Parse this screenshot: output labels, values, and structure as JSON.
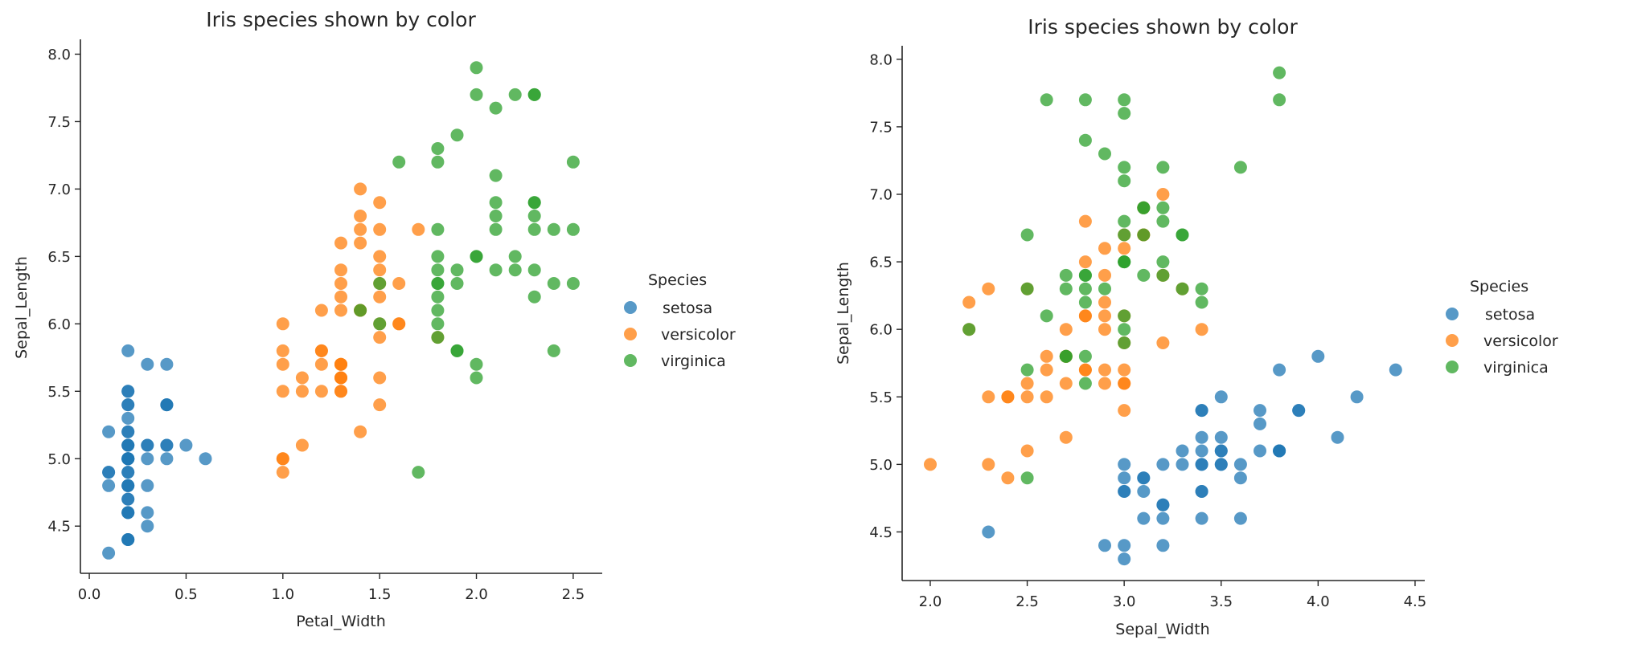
{
  "chart_data": [
    {
      "type": "scatter",
      "title": "Iris species shown by color",
      "xlabel": "Petal_Width",
      "ylabel": "Sepal_Length",
      "x_field": "petal_width",
      "y_field": "sepal_length",
      "xlim": [
        -0.046,
        2.65
      ],
      "ylim": [
        4.15,
        8.11
      ],
      "xticks": [
        0.0,
        0.5,
        1.0,
        1.5,
        2.0,
        2.5
      ],
      "xtick_labels": [
        "0.0",
        "0.5",
        "1.0",
        "1.5",
        "2.0",
        "2.5"
      ],
      "yticks": [
        4.5,
        5.0,
        5.5,
        6.0,
        6.5,
        7.0,
        7.5,
        8.0
      ],
      "ytick_labels": [
        "4.5",
        "5.0",
        "5.5",
        "6.0",
        "6.5",
        "7.0",
        "7.5",
        "8.0"
      ],
      "grid": false,
      "legend": {
        "title": "Species",
        "placement": "right",
        "entries": [
          "setosa",
          "versicolor",
          "virginica"
        ]
      }
    },
    {
      "type": "scatter",
      "title": "Iris species shown by color",
      "xlabel": "Sepal_Width",
      "ylabel": "Sepal_Length",
      "x_field": "sepal_width",
      "y_field": "sepal_length",
      "xlim": [
        1.855,
        4.55
      ],
      "ylim": [
        4.14,
        8.1
      ],
      "xticks": [
        2.0,
        2.5,
        3.0,
        3.5,
        4.0,
        4.5
      ],
      "xtick_labels": [
        "2.0",
        "2.5",
        "3.0",
        "3.5",
        "4.0",
        "4.5"
      ],
      "yticks": [
        4.5,
        5.0,
        5.5,
        6.0,
        6.5,
        7.0,
        7.5,
        8.0
      ],
      "ytick_labels": [
        "4.5",
        "5.0",
        "5.5",
        "6.0",
        "6.5",
        "7.0",
        "7.5",
        "8.0"
      ],
      "grid": false,
      "legend": {
        "title": "Species",
        "placement": "right",
        "entries": [
          "setosa",
          "versicolor",
          "virginica"
        ]
      }
    }
  ],
  "species_colors": {
    "setosa": "#1f77b4",
    "versicolor": "#ff7f0e",
    "virginica": "#2ca02c"
  },
  "point_alpha": 0.75,
  "series": [
    {
      "name": "setosa",
      "sepal_length": [
        5.1,
        4.9,
        4.7,
        4.6,
        5.0,
        5.4,
        4.6,
        5.0,
        4.4,
        4.9,
        5.4,
        4.8,
        4.8,
        4.3,
        5.8,
        5.7,
        5.4,
        5.1,
        5.7,
        5.1,
        5.4,
        5.1,
        4.6,
        5.1,
        4.8,
        5.0,
        5.0,
        5.2,
        5.2,
        4.7,
        4.8,
        5.4,
        5.2,
        5.5,
        4.9,
        5.0,
        5.5,
        4.9,
        4.4,
        5.1,
        5.0,
        4.5,
        4.4,
        5.0,
        5.1,
        4.8,
        5.1,
        4.6,
        5.3,
        5.0
      ],
      "sepal_width": [
        3.5,
        3.0,
        3.2,
        3.1,
        3.6,
        3.9,
        3.4,
        3.4,
        2.9,
        3.1,
        3.7,
        3.4,
        3.0,
        3.0,
        4.0,
        4.4,
        3.9,
        3.5,
        3.8,
        3.8,
        3.4,
        3.7,
        3.6,
        3.3,
        3.4,
        3.0,
        3.4,
        3.5,
        3.4,
        3.2,
        3.1,
        3.4,
        4.1,
        4.2,
        3.1,
        3.2,
        3.5,
        3.6,
        3.0,
        3.4,
        3.5,
        2.3,
        3.2,
        3.5,
        3.8,
        3.0,
        3.8,
        3.2,
        3.7,
        3.3
      ],
      "petal_width": [
        0.2,
        0.2,
        0.2,
        0.2,
        0.2,
        0.4,
        0.3,
        0.2,
        0.2,
        0.1,
        0.2,
        0.2,
        0.1,
        0.1,
        0.2,
        0.4,
        0.4,
        0.3,
        0.3,
        0.3,
        0.2,
        0.4,
        0.2,
        0.5,
        0.2,
        0.2,
        0.4,
        0.2,
        0.2,
        0.2,
        0.2,
        0.4,
        0.1,
        0.2,
        0.2,
        0.2,
        0.2,
        0.1,
        0.2,
        0.2,
        0.3,
        0.3,
        0.2,
        0.6,
        0.4,
        0.3,
        0.2,
        0.2,
        0.2,
        0.2
      ]
    },
    {
      "name": "versicolor",
      "sepal_length": [
        7.0,
        6.4,
        6.9,
        5.5,
        6.5,
        5.7,
        6.3,
        4.9,
        6.6,
        5.2,
        5.0,
        5.9,
        6.0,
        6.1,
        5.6,
        6.7,
        5.6,
        5.8,
        6.2,
        5.6,
        5.9,
        6.1,
        6.3,
        6.1,
        6.4,
        6.6,
        6.8,
        6.7,
        6.0,
        5.7,
        5.5,
        5.5,
        5.8,
        6.0,
        5.4,
        6.0,
        6.7,
        6.3,
        5.6,
        5.5,
        5.5,
        6.1,
        5.8,
        5.0,
        5.6,
        5.7,
        5.7,
        6.2,
        5.1,
        5.7
      ],
      "sepal_width": [
        3.2,
        3.2,
        3.1,
        2.3,
        2.8,
        2.8,
        3.3,
        2.4,
        2.9,
        2.7,
        2.0,
        3.0,
        2.2,
        2.9,
        2.9,
        3.1,
        3.0,
        2.7,
        2.2,
        2.5,
        3.2,
        2.8,
        2.5,
        2.8,
        2.9,
        3.0,
        2.8,
        3.0,
        2.9,
        2.6,
        2.4,
        2.4,
        2.7,
        2.7,
        3.0,
        3.4,
        3.1,
        2.3,
        3.0,
        2.5,
        2.6,
        3.0,
        2.6,
        2.3,
        2.7,
        3.0,
        2.9,
        2.9,
        2.5,
        2.8
      ],
      "petal_width": [
        1.4,
        1.5,
        1.5,
        1.3,
        1.5,
        1.3,
        1.6,
        1.0,
        1.3,
        1.4,
        1.0,
        1.5,
        1.0,
        1.4,
        1.3,
        1.4,
        1.5,
        1.0,
        1.5,
        1.1,
        1.8,
        1.3,
        1.5,
        1.2,
        1.3,
        1.4,
        1.4,
        1.7,
        1.5,
        1.0,
        1.1,
        1.0,
        1.2,
        1.6,
        1.5,
        1.6,
        1.5,
        1.3,
        1.3,
        1.3,
        1.2,
        1.4,
        1.2,
        1.0,
        1.3,
        1.2,
        1.3,
        1.3,
        1.1,
        1.3
      ]
    },
    {
      "name": "virginica",
      "sepal_length": [
        6.3,
        5.8,
        7.1,
        6.3,
        6.5,
        7.6,
        4.9,
        7.3,
        6.7,
        7.2,
        6.5,
        6.4,
        6.8,
        5.7,
        5.8,
        6.4,
        6.5,
        7.7,
        7.7,
        6.0,
        6.9,
        5.6,
        7.7,
        6.3,
        6.7,
        7.2,
        6.2,
        6.1,
        6.4,
        7.2,
        7.4,
        7.9,
        6.4,
        6.3,
        6.1,
        7.7,
        6.3,
        6.4,
        6.0,
        6.9,
        6.7,
        6.9,
        5.8,
        6.8,
        6.7,
        6.7,
        6.3,
        6.5,
        6.2,
        5.9
      ],
      "sepal_width": [
        3.3,
        2.7,
        3.0,
        2.9,
        3.0,
        3.0,
        2.5,
        2.9,
        2.5,
        3.6,
        3.2,
        2.7,
        3.0,
        2.5,
        2.8,
        3.2,
        3.0,
        3.8,
        2.6,
        2.2,
        3.2,
        2.8,
        2.8,
        2.7,
        3.3,
        3.2,
        2.8,
        3.0,
        2.8,
        3.0,
        2.8,
        3.8,
        2.8,
        2.8,
        2.6,
        3.0,
        3.4,
        3.1,
        3.0,
        3.1,
        3.1,
        3.1,
        2.7,
        3.2,
        3.3,
        3.0,
        2.5,
        3.0,
        3.4,
        3.0
      ],
      "petal_width": [
        2.5,
        1.9,
        2.1,
        1.8,
        2.2,
        2.1,
        1.7,
        1.8,
        1.8,
        2.5,
        2.0,
        1.9,
        2.1,
        2.0,
        2.4,
        2.3,
        1.8,
        2.2,
        2.3,
        1.5,
        2.3,
        2.0,
        2.0,
        1.8,
        2.1,
        1.8,
        1.8,
        1.8,
        2.1,
        1.6,
        1.9,
        2.0,
        2.2,
        1.5,
        1.4,
        2.3,
        2.4,
        1.8,
        1.8,
        2.1,
        2.4,
        2.3,
        1.9,
        2.3,
        2.5,
        2.3,
        1.9,
        2.0,
        2.3,
        1.8
      ]
    }
  ]
}
